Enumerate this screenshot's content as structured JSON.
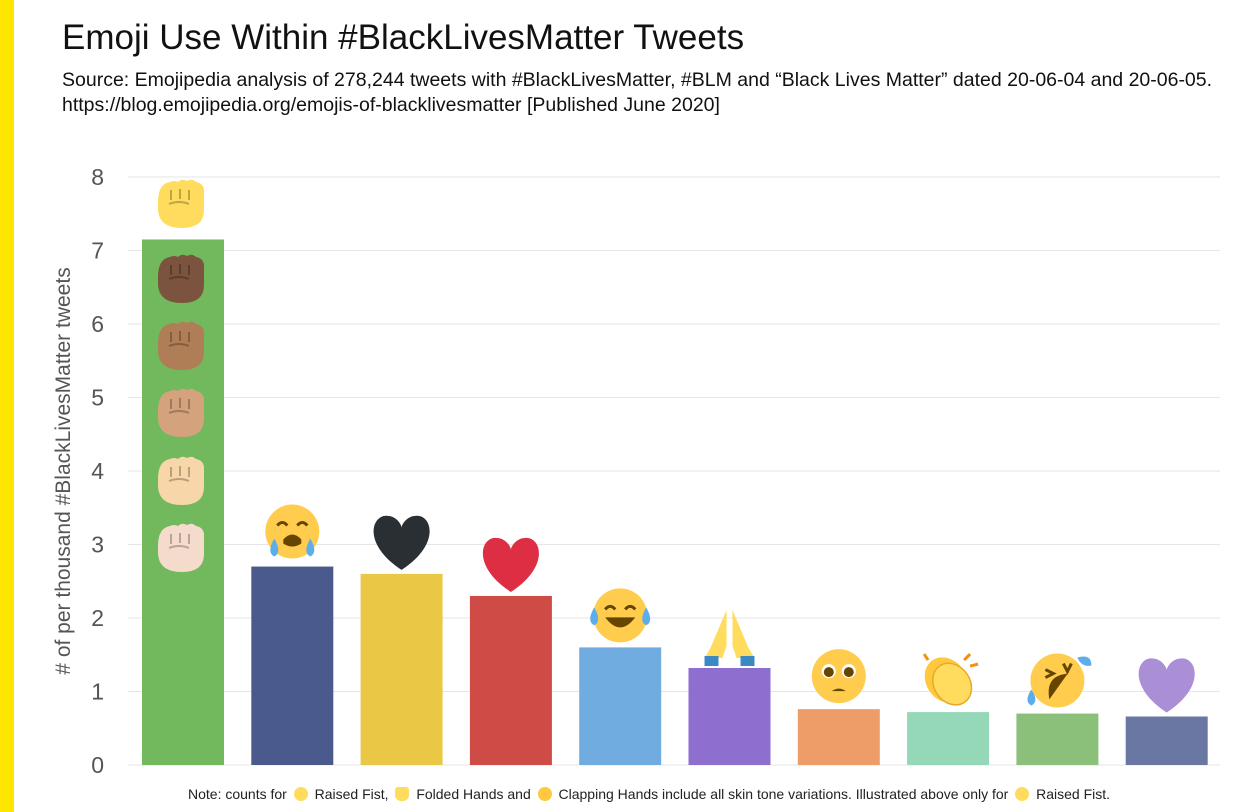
{
  "title": "Emoji Use Within #BlackLivesMatter Tweets",
  "subtitle_line1": "Source: Emojipedia analysis of 278,244 tweets with #BlackLivesMatter, #BLM and “Black Lives Matter” dated 20-06-04 and 20-06-05.",
  "subtitle_line2": "https://blog.emojipedia.org/emojis-of-blacklivesmatter [Published June 2020]",
  "note": {
    "prefix": "Note: counts for",
    "raised_fist": "Raised Fist,",
    "folded_hands": "Folded Hands and",
    "clapping_hands": "Clapping Hands include all skin tone variations. Illustrated above only for",
    "raised_fist_end": "Raised Fist."
  },
  "colors": {
    "accent": "#FFE600",
    "grid": "#e6e6e6",
    "axis": "#555555"
  },
  "chart_data": {
    "type": "bar",
    "ylabel": "# of per thousand #BlackLivesMatter tweets",
    "xlabel": "",
    "ylim": [
      0,
      8
    ],
    "yticks": [
      0,
      1,
      2,
      3,
      4,
      5,
      6,
      7,
      8
    ],
    "grid": true,
    "categories": [
      "raised-fist",
      "loudly-crying-face",
      "black-heart",
      "red-heart",
      "face-with-tears-of-joy",
      "folded-hands",
      "pleading-face",
      "clapping-hands",
      "rolling-on-the-floor-laughing",
      "purple-heart"
    ],
    "values": [
      7.15,
      2.7,
      2.6,
      2.3,
      1.6,
      1.32,
      0.76,
      0.72,
      0.7,
      0.66
    ],
    "bar_colors": [
      "#72B85C",
      "#4B5A8C",
      "#EAC845",
      "#CF4B45",
      "#70ACE0",
      "#8E6ECF",
      "#EE9C68",
      "#95D8B8",
      "#8BC07A",
      "#6B77A3"
    ],
    "fist_skin_tones": [
      "#FFDC5D",
      "#7C533E",
      "#AF7E57",
      "#D4A37D",
      "#F7D7A9",
      "#F5DBCC"
    ]
  }
}
